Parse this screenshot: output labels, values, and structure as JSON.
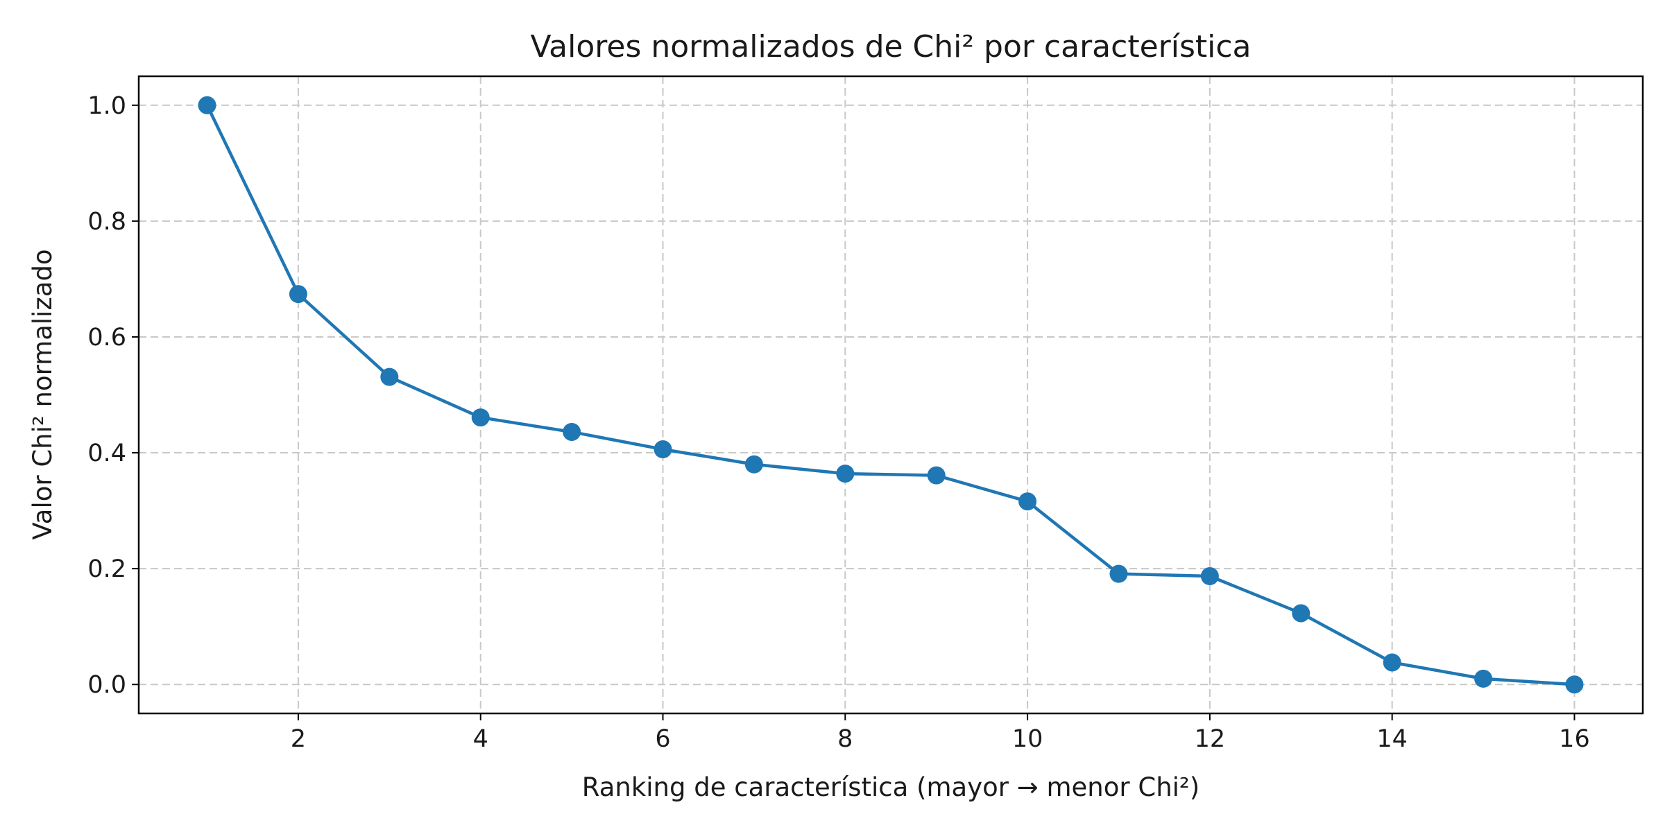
{
  "chart_data": {
    "type": "line",
    "title": "Valores normalizados de Chi² por característica",
    "xlabel": "Ranking de característica (mayor → menor Chi²)",
    "ylabel": "Valor Chi² normalizado",
    "xlim": [
      0.25,
      16.75
    ],
    "ylim": [
      -0.05,
      1.05
    ],
    "x_ticks": [
      2,
      4,
      6,
      8,
      10,
      12,
      14,
      16
    ],
    "x_tick_labels": [
      "2",
      "4",
      "6",
      "8",
      "10",
      "12",
      "14",
      "16"
    ],
    "y_ticks": [
      0.0,
      0.2,
      0.4,
      0.6,
      0.8,
      1.0
    ],
    "y_tick_labels": [
      "0.0",
      "0.2",
      "0.4",
      "0.6",
      "0.8",
      "1.0"
    ],
    "grid": true,
    "series": [
      {
        "color": "#1f77b4",
        "marker": "circle",
        "x": [
          1,
          2,
          3,
          4,
          5,
          6,
          7,
          8,
          9,
          10,
          11,
          12,
          13,
          14,
          15,
          16
        ],
        "values": [
          1.0,
          0.674,
          0.531,
          0.461,
          0.436,
          0.406,
          0.38,
          0.364,
          0.361,
          0.316,
          0.191,
          0.187,
          0.123,
          0.038,
          0.01,
          0.0
        ]
      }
    ]
  }
}
